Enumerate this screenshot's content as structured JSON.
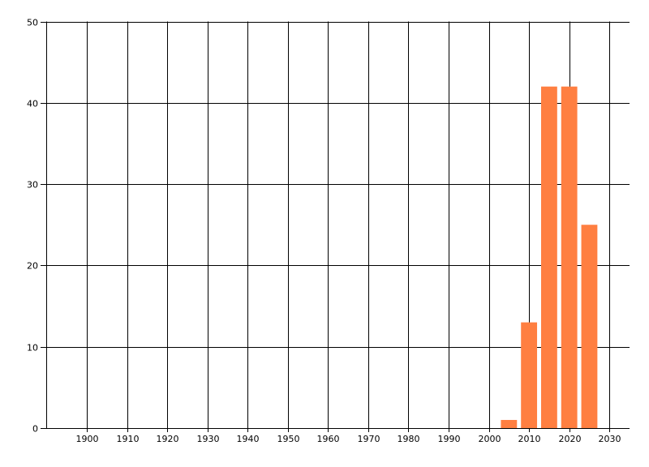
{
  "chart_data": {
    "type": "bar",
    "title": "",
    "xlabel": "",
    "ylabel": "",
    "xlim": [
      1890,
      2035
    ],
    "ylim": [
      0,
      50
    ],
    "x_ticks": [
      1900,
      1910,
      1920,
      1930,
      1940,
      1950,
      1960,
      1970,
      1980,
      1990,
      2000,
      2010,
      2020,
      2030
    ],
    "y_ticks": [
      0,
      10,
      20,
      30,
      40,
      50
    ],
    "grid": true,
    "bar_width_years": 4,
    "color": "#FF7F41",
    "x": [
      2005,
      2010,
      2015,
      2020,
      2025
    ],
    "values": [
      1,
      13,
      42,
      42,
      25
    ]
  }
}
